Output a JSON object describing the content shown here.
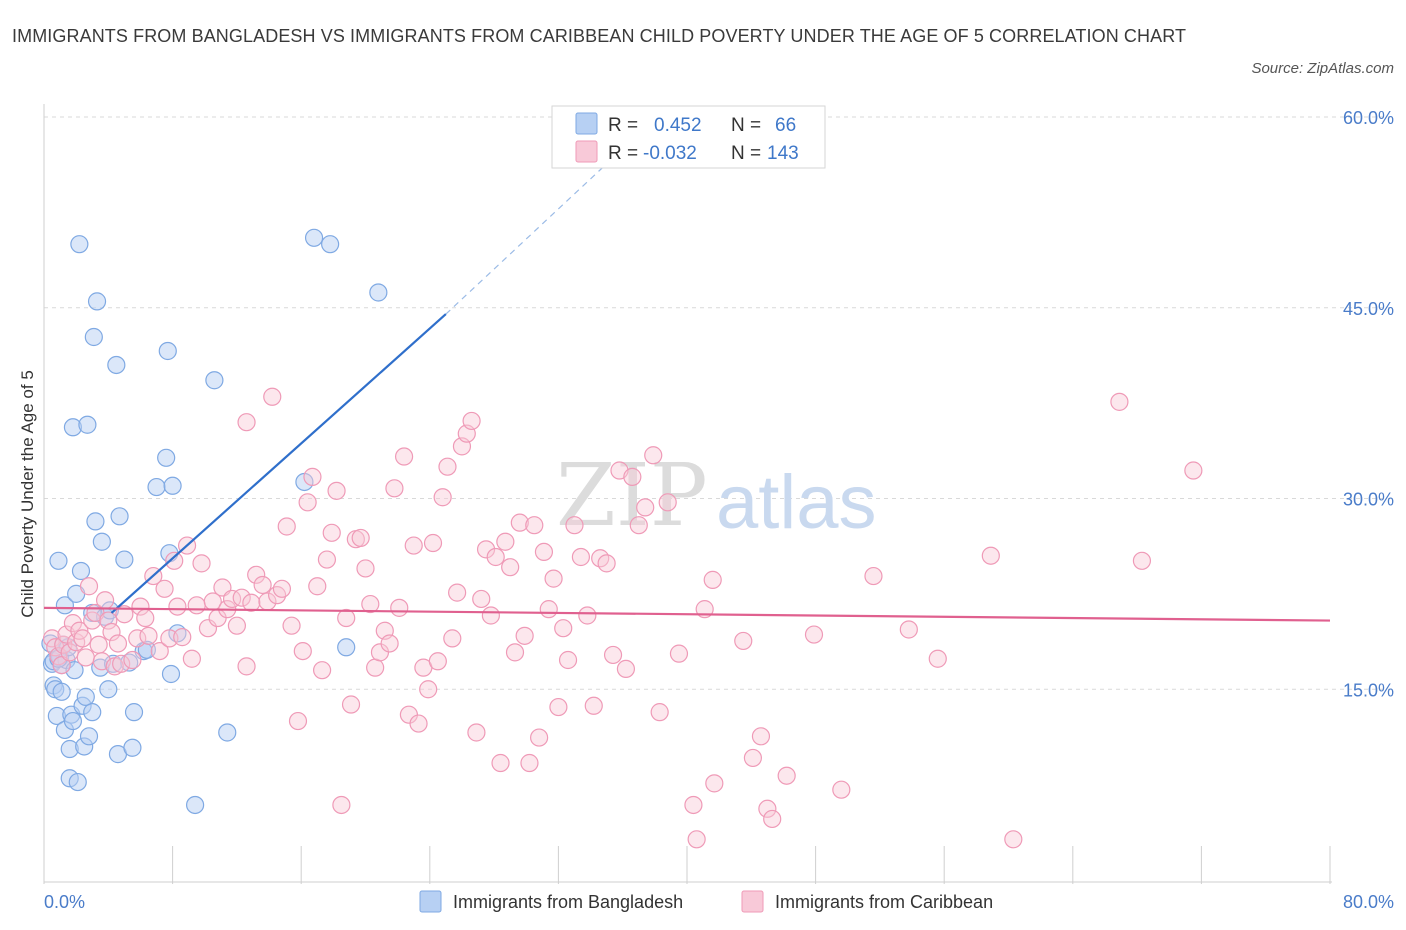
{
  "header": {
    "title": "IMMIGRANTS FROM BANGLADESH VS IMMIGRANTS FROM CARIBBEAN CHILD POVERTY UNDER THE AGE OF 5 CORRELATION CHART",
    "source": "Source: ZipAtlas.com"
  },
  "watermark": {
    "zip": "ZIP",
    "atlas": "atlas"
  },
  "legend_box": {
    "rows": [
      {
        "r_label": "R =",
        "r_value": "0.452",
        "n_label": "N =",
        "n_value": "66"
      },
      {
        "r_label": "R =",
        "r_value": "-0.032",
        "n_label": "N =",
        "n_value": "143"
      }
    ]
  },
  "chart_data": {
    "type": "scatter",
    "title": "IMMIGRANTS FROM BANGLADESH VS IMMIGRANTS FROM CARIBBEAN CHILD POVERTY UNDER THE AGE OF 5 CORRELATION CHART",
    "xlabel": "",
    "ylabel": "Child Poverty Under the Age of 5",
    "xlim": [
      0,
      80
    ],
    "ylim": [
      0,
      60
    ],
    "x_tick_labels": [
      "0.0%",
      "80.0%"
    ],
    "y_ticks": [
      15,
      30,
      45,
      60
    ],
    "y_tick_labels": [
      "15.0%",
      "30.0%",
      "45.0%",
      "60.0%"
    ],
    "grid": true,
    "legend_position": "bottom",
    "colors": {
      "bangladesh": "#7fa9e3",
      "caribbean": "#ef9ab7",
      "bangladesh_line": "#2f6fcb",
      "caribbean_line": "#e0608f"
    },
    "series": [
      {
        "name": "Immigrants from Bangladesh",
        "R": 0.452,
        "N": 66,
        "trend": {
          "x": [
            4.2,
            25
          ],
          "y": [
            21,
            44.5
          ],
          "dashed_to": {
            "x": 36,
            "y": 57.5
          }
        },
        "points": [
          [
            0.4,
            18.6
          ],
          [
            0.5,
            17.0
          ],
          [
            0.6,
            15.3
          ],
          [
            0.6,
            17.2
          ],
          [
            0.7,
            15.0
          ],
          [
            0.8,
            12.9
          ],
          [
            0.9,
            25.1
          ],
          [
            1.0,
            17.5
          ],
          [
            1.1,
            16.9
          ],
          [
            1.1,
            14.8
          ],
          [
            1.2,
            18.5
          ],
          [
            1.3,
            21.6
          ],
          [
            1.3,
            11.8
          ],
          [
            1.4,
            17.3
          ],
          [
            1.5,
            18.3
          ],
          [
            1.6,
            10.3
          ],
          [
            1.6,
            8.0
          ],
          [
            1.7,
            13.0
          ],
          [
            1.8,
            12.5
          ],
          [
            1.8,
            35.6
          ],
          [
            1.9,
            16.5
          ],
          [
            2.0,
            22.5
          ],
          [
            2.1,
            7.7
          ],
          [
            2.2,
            50.0
          ],
          [
            2.3,
            24.3
          ],
          [
            2.4,
            13.7
          ],
          [
            2.5,
            10.5
          ],
          [
            2.6,
            14.4
          ],
          [
            2.7,
            35.8
          ],
          [
            2.8,
            11.3
          ],
          [
            3.0,
            21.0
          ],
          [
            3.0,
            13.2
          ],
          [
            3.1,
            42.7
          ],
          [
            3.2,
            28.2
          ],
          [
            3.3,
            45.5
          ],
          [
            3.5,
            16.7
          ],
          [
            3.6,
            26.6
          ],
          [
            3.8,
            20.7
          ],
          [
            4.0,
            15.0
          ],
          [
            4.1,
            21.2
          ],
          [
            4.3,
            17.0
          ],
          [
            4.5,
            40.5
          ],
          [
            4.6,
            9.9
          ],
          [
            4.7,
            28.6
          ],
          [
            5.0,
            25.2
          ],
          [
            5.3,
            17.1
          ],
          [
            5.5,
            10.4
          ],
          [
            5.6,
            13.2
          ],
          [
            6.2,
            18.0
          ],
          [
            6.4,
            18.1
          ],
          [
            7.0,
            30.9
          ],
          [
            7.6,
            33.2
          ],
          [
            7.7,
            41.6
          ],
          [
            7.8,
            25.7
          ],
          [
            7.9,
            16.2
          ],
          [
            8.0,
            31.0
          ],
          [
            8.3,
            19.4
          ],
          [
            9.4,
            5.9
          ],
          [
            10.6,
            39.3
          ],
          [
            11.4,
            11.6
          ],
          [
            16.2,
            31.3
          ],
          [
            16.8,
            50.5
          ],
          [
            17.8,
            50.0
          ],
          [
            18.8,
            18.3
          ],
          [
            20.8,
            46.2
          ],
          [
            0.9,
            17.4
          ]
        ]
      },
      {
        "name": "Immigrants from Caribbean",
        "R": -0.032,
        "N": 143,
        "trend": {
          "x": [
            0,
            80
          ],
          "y": [
            21.4,
            20.4
          ]
        },
        "points": [
          [
            0.5,
            19.0
          ],
          [
            0.7,
            18.3
          ],
          [
            0.9,
            17.6
          ],
          [
            1.1,
            16.9
          ],
          [
            1.2,
            18.5
          ],
          [
            1.4,
            19.3
          ],
          [
            1.6,
            17.9
          ],
          [
            1.8,
            20.2
          ],
          [
            2.0,
            18.7
          ],
          [
            2.2,
            19.6
          ],
          [
            2.4,
            19.0
          ],
          [
            2.6,
            17.5
          ],
          [
            2.8,
            23.1
          ],
          [
            3.0,
            20.4
          ],
          [
            3.2,
            21.0
          ],
          [
            3.4,
            18.5
          ],
          [
            3.6,
            17.2
          ],
          [
            3.8,
            22.0
          ],
          [
            4.0,
            20.4
          ],
          [
            4.2,
            19.5
          ],
          [
            4.4,
            16.8
          ],
          [
            4.6,
            18.6
          ],
          [
            4.8,
            17.0
          ],
          [
            5.0,
            20.9
          ],
          [
            5.5,
            17.3
          ],
          [
            5.8,
            19.0
          ],
          [
            6.0,
            21.5
          ],
          [
            6.3,
            20.6
          ],
          [
            6.5,
            19.2
          ],
          [
            6.8,
            23.9
          ],
          [
            7.2,
            18.0
          ],
          [
            7.5,
            22.9
          ],
          [
            7.8,
            19.0
          ],
          [
            8.1,
            25.1
          ],
          [
            8.3,
            21.5
          ],
          [
            8.6,
            19.1
          ],
          [
            8.9,
            26.3
          ],
          [
            9.2,
            17.4
          ],
          [
            9.5,
            21.6
          ],
          [
            9.8,
            24.9
          ],
          [
            10.2,
            19.8
          ],
          [
            10.5,
            21.9
          ],
          [
            10.8,
            20.6
          ],
          [
            11.1,
            23.0
          ],
          [
            11.4,
            21.3
          ],
          [
            11.7,
            22.1
          ],
          [
            12.0,
            20.0
          ],
          [
            12.3,
            22.2
          ],
          [
            12.6,
            16.8
          ],
          [
            12.9,
            21.8
          ],
          [
            13.2,
            24.0
          ],
          [
            13.6,
            23.2
          ],
          [
            13.9,
            21.9
          ],
          [
            14.2,
            38.0
          ],
          [
            14.5,
            22.4
          ],
          [
            14.8,
            22.9
          ],
          [
            15.1,
            27.8
          ],
          [
            15.4,
            20.0
          ],
          [
            15.8,
            12.5
          ],
          [
            16.1,
            18.0
          ],
          [
            16.4,
            29.7
          ],
          [
            16.7,
            31.7
          ],
          [
            17.0,
            23.1
          ],
          [
            17.3,
            16.5
          ],
          [
            17.6,
            25.2
          ],
          [
            17.9,
            27.3
          ],
          [
            18.2,
            30.6
          ],
          [
            18.5,
            5.9
          ],
          [
            18.8,
            20.6
          ],
          [
            19.1,
            13.8
          ],
          [
            19.4,
            26.8
          ],
          [
            19.7,
            26.9
          ],
          [
            20.0,
            24.5
          ],
          [
            20.3,
            21.7
          ],
          [
            20.6,
            16.7
          ],
          [
            20.9,
            17.9
          ],
          [
            21.2,
            19.6
          ],
          [
            21.5,
            18.6
          ],
          [
            21.8,
            30.8
          ],
          [
            22.1,
            21.4
          ],
          [
            22.4,
            33.3
          ],
          [
            22.7,
            13.0
          ],
          [
            23.0,
            26.3
          ],
          [
            23.3,
            12.3
          ],
          [
            23.6,
            16.7
          ],
          [
            23.9,
            15.0
          ],
          [
            24.2,
            26.5
          ],
          [
            24.5,
            17.2
          ],
          [
            24.8,
            30.1
          ],
          [
            25.1,
            32.5
          ],
          [
            25.4,
            19.0
          ],
          [
            25.7,
            22.6
          ],
          [
            26.0,
            34.1
          ],
          [
            26.3,
            35.1
          ],
          [
            26.6,
            36.1
          ],
          [
            26.9,
            11.6
          ],
          [
            27.2,
            22.1
          ],
          [
            27.5,
            26.0
          ],
          [
            27.8,
            20.8
          ],
          [
            28.1,
            25.4
          ],
          [
            28.4,
            9.2
          ],
          [
            28.7,
            26.6
          ],
          [
            29.0,
            24.6
          ],
          [
            29.3,
            17.9
          ],
          [
            29.6,
            28.1
          ],
          [
            29.9,
            19.2
          ],
          [
            30.2,
            9.2
          ],
          [
            30.5,
            27.9
          ],
          [
            30.8,
            11.2
          ],
          [
            31.1,
            25.8
          ],
          [
            31.4,
            21.3
          ],
          [
            31.7,
            23.7
          ],
          [
            32.0,
            13.6
          ],
          [
            32.3,
            19.8
          ],
          [
            32.6,
            17.3
          ],
          [
            33.0,
            27.9
          ],
          [
            33.4,
            25.4
          ],
          [
            33.8,
            20.8
          ],
          [
            34.2,
            13.7
          ],
          [
            34.6,
            25.3
          ],
          [
            35.0,
            24.9
          ],
          [
            35.4,
            17.7
          ],
          [
            35.8,
            32.2
          ],
          [
            36.2,
            16.6
          ],
          [
            36.6,
            31.7
          ],
          [
            37.0,
            27.9
          ],
          [
            37.4,
            29.3
          ],
          [
            37.9,
            33.4
          ],
          [
            38.3,
            13.2
          ],
          [
            38.8,
            29.7
          ],
          [
            39.5,
            17.8
          ],
          [
            40.4,
            5.9
          ],
          [
            41.1,
            21.3
          ],
          [
            41.6,
            23.6
          ],
          [
            43.5,
            18.8
          ],
          [
            44.1,
            9.6
          ],
          [
            44.6,
            11.3
          ],
          [
            45.0,
            5.6
          ],
          [
            45.3,
            4.8
          ],
          [
            46.2,
            8.2
          ],
          [
            47.9,
            19.3
          ],
          [
            49.6,
            7.1
          ],
          [
            51.6,
            23.9
          ],
          [
            53.8,
            19.7
          ],
          [
            55.6,
            17.4
          ],
          [
            58.9,
            25.5
          ],
          [
            60.3,
            3.2
          ],
          [
            66.9,
            37.6
          ],
          [
            68.3,
            25.1
          ],
          [
            71.5,
            32.2
          ],
          [
            41.7,
            7.6
          ],
          [
            40.6,
            3.2
          ],
          [
            12.6,
            36.0
          ]
        ]
      }
    ]
  },
  "bottom_legend": {
    "items": [
      {
        "label": "Immigrants from Bangladesh"
      },
      {
        "label": "Immigrants from Caribbean"
      }
    ]
  }
}
